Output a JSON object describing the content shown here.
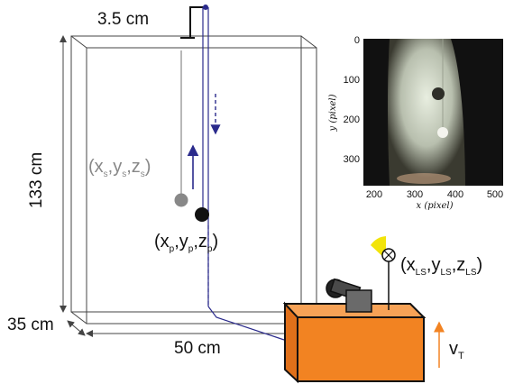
{
  "dimensions": {
    "width_label": "50 cm",
    "height_label": "133 cm",
    "depth_label": "35 cm",
    "rod_offset_label": "3.5 cm"
  },
  "labels": {
    "shadow": {
      "a": "(x",
      "a_sub": "s",
      "b": ",y",
      "b_sub": "s",
      "c": ",z",
      "c_sub": "s",
      "d": ")"
    },
    "particle": {
      "a": "(x",
      "a_sub": "p",
      "b": ",y",
      "b_sub": "p",
      "c": ",z",
      "c_sub": "p",
      "d": ")"
    },
    "light_source": {
      "a": "(x",
      "a_sub": "LS",
      "b": ",y",
      "b_sub": "LS",
      "c": ",z",
      "c_sub": "LS",
      "d": ")"
    },
    "velocity": {
      "main": "v",
      "sub": "T"
    }
  },
  "inset": {
    "y_axis_label": "y (pixel)",
    "x_axis_label": "x (pixel)",
    "y_ticks": [
      "0",
      "100",
      "200",
      "300"
    ],
    "x_ticks": [
      "200",
      "300",
      "400",
      "500"
    ]
  },
  "colors": {
    "tank_line": "#444444",
    "particle": "#111111",
    "shadow": "#888888",
    "rod": "#2b2b8c",
    "cart": "#f28322",
    "velocity_arrow": "#f28322",
    "lamp": "#f2e40a"
  }
}
